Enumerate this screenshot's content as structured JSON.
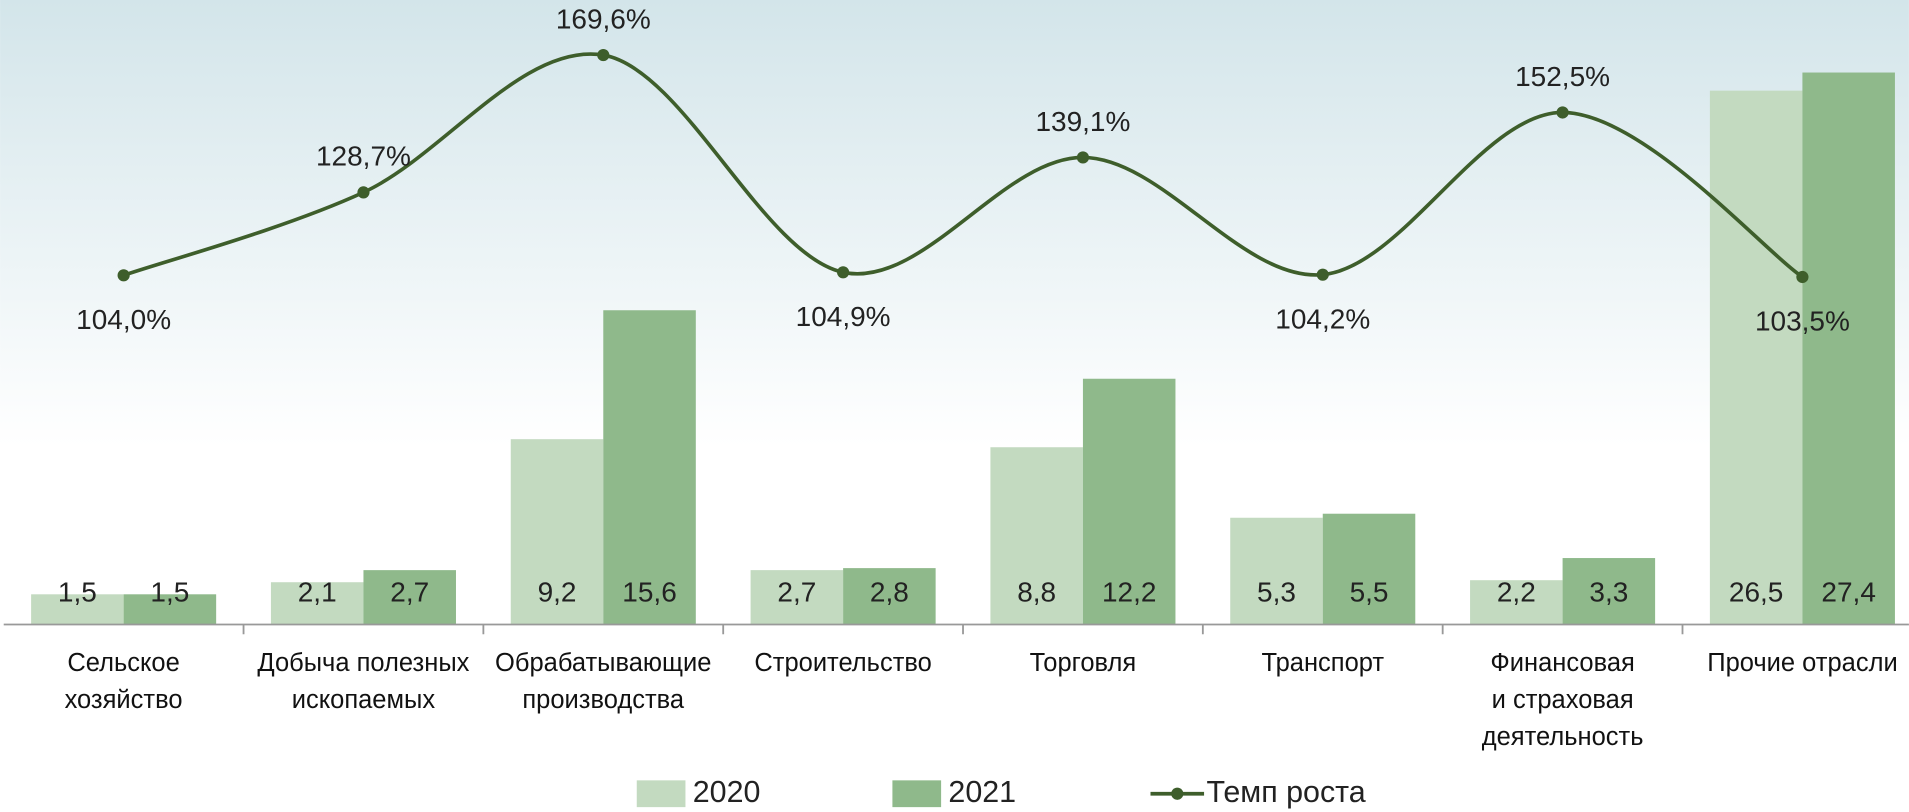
{
  "chart_data": {
    "type": "bar",
    "categories": [
      "Сельское\nхозяйство",
      "Добыча полезных\nископаемых",
      "Обрабатывающие\nпроизводства",
      "Строительство",
      "Торговля",
      "Транспорт",
      "Финансовая\nи страховая\nдеятельность",
      "Прочие отрасли"
    ],
    "series": [
      {
        "name": "2020",
        "color": "#c3dac0",
        "values": [
          1.5,
          2.1,
          9.2,
          2.7,
          8.8,
          5.3,
          2.2,
          26.5
        ],
        "value_labels": [
          "1,5",
          "2,1",
          "9,2",
          "2,7",
          "8,8",
          "5,3",
          "2,2",
          "26,5"
        ]
      },
      {
        "name": "2021",
        "color": "#8fb98b",
        "values": [
          1.5,
          2.7,
          15.6,
          2.8,
          12.2,
          5.5,
          3.3,
          27.4
        ],
        "value_labels": [
          "1,5",
          "2,7",
          "15,6",
          "2,8",
          "12,2",
          "5,5",
          "3,3",
          "27,4"
        ]
      },
      {
        "name": "Темп роста",
        "type": "line",
        "axis": "y2",
        "color": "#3e5e2b",
        "values": [
          104.0,
          128.7,
          169.6,
          104.9,
          139.1,
          104.2,
          152.5,
          103.5
        ],
        "value_labels": [
          "104,0%",
          "128,7%",
          "169,6%",
          "104,9%",
          "139,1%",
          "104,2%",
          "152,5%",
          "103,5%"
        ]
      }
    ],
    "ylim": [
      0,
      31
    ],
    "y2lim": [
      0,
      186
    ],
    "legend": "bottom"
  }
}
